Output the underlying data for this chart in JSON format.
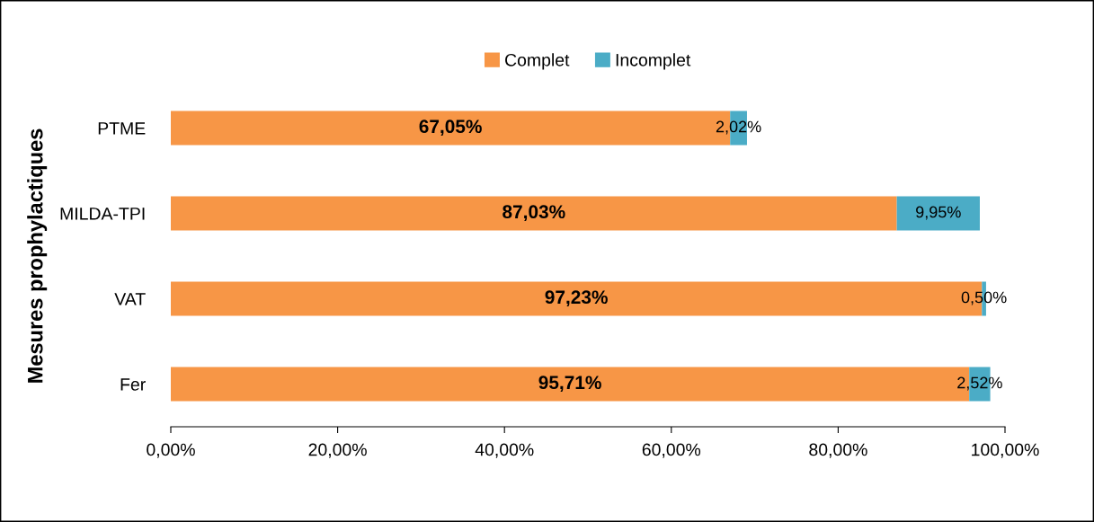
{
  "chart_data": {
    "type": "bar",
    "orientation": "horizontal",
    "stacked": true,
    "ylabel": "Mesures prophylactiques",
    "categories": [
      "PTME",
      "MILDA-TPI",
      "VAT",
      "Fer"
    ],
    "series": [
      {
        "name": "Complet",
        "color": "#f79646",
        "values": [
          67.05,
          87.03,
          97.23,
          95.71
        ],
        "value_labels": [
          "67,05%",
          "87,03%",
          "97,23%",
          "95,71%"
        ]
      },
      {
        "name": "Incomplet",
        "color": "#4bacc6",
        "values": [
          2.02,
          9.95,
          0.5,
          2.52
        ],
        "value_labels": [
          "2,02%",
          "9,95%",
          "0,50%",
          "2,52%"
        ]
      }
    ],
    "xlim": [
      0,
      100
    ],
    "xticks": [
      {
        "value": 0,
        "label": "0,00%"
      },
      {
        "value": 20,
        "label": "20,00%"
      },
      {
        "value": 40,
        "label": "40,00%"
      },
      {
        "value": 60,
        "label": "60,00%"
      },
      {
        "value": 80,
        "label": "80,00%"
      },
      {
        "value": 100,
        "label": "100,00%"
      }
    ],
    "grid": false,
    "legend": "top"
  }
}
